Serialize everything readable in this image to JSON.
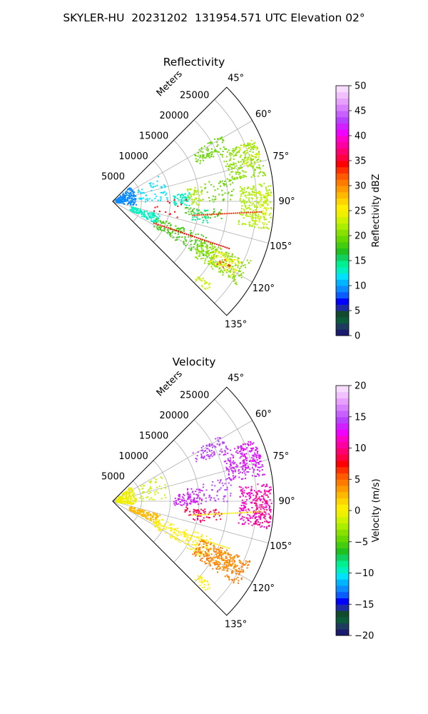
{
  "figure": {
    "title": "SKYLER-HU  20231202  131954.571 UTC Elevation 02°"
  },
  "chart_data": [
    {
      "type": "polar-sector",
      "title": "Reflectivity",
      "radial_label": "Meters",
      "radial_ticks": [
        "5000",
        "10000",
        "15000",
        "20000",
        "25000"
      ],
      "radial_tick_values": [
        5000,
        10000,
        15000,
        20000,
        25000
      ],
      "rmax": 28000,
      "azimuth_range_deg": [
        45,
        135
      ],
      "azimuth_ticks": [
        "45°",
        "60°",
        "75°",
        "90°",
        "105°",
        "120°",
        "135°"
      ],
      "azimuth_tick_values": [
        45,
        60,
        75,
        90,
        105,
        120,
        135
      ],
      "grid": true,
      "colorbar": {
        "label": "Reflectivity dBZ",
        "min": 0,
        "max": 50,
        "ticks": [
          "0",
          "5",
          "10",
          "15",
          "20",
          "25",
          "30",
          "35",
          "40",
          "45",
          "50"
        ],
        "tick_values": [
          0,
          5,
          10,
          15,
          20,
          25,
          30,
          35,
          40,
          45,
          50
        ],
        "colors": [
          "#1a1a6e",
          "#1f3a5f",
          "#0b5b3b",
          "#124a2e",
          "#1e2aa8",
          "#0000ff",
          "#0a5cff",
          "#0a8cff",
          "#00b4ff",
          "#00e1ff",
          "#00f0c0",
          "#00f090",
          "#10d060",
          "#20c020",
          "#44cc10",
          "#66d800",
          "#88e000",
          "#aaee00",
          "#ccf200",
          "#eef000",
          "#ffee00",
          "#ffd400",
          "#ffb800",
          "#ff9a00",
          "#ff7a00",
          "#ff5a00",
          "#ff3000",
          "#ff0000",
          "#ff0040",
          "#ff0070",
          "#ff00a0",
          "#ff00c8",
          "#f000ff",
          "#d020ff",
          "#b840ff",
          "#c860ff",
          "#d880ff",
          "#e8a0ff",
          "#f0c0ff",
          "#f8dcff"
        ]
      }
    },
    {
      "type": "polar-sector",
      "title": "Velocity",
      "radial_label": "Meters",
      "radial_ticks": [
        "5000",
        "10000",
        "15000",
        "20000",
        "25000"
      ],
      "radial_tick_values": [
        5000,
        10000,
        15000,
        20000,
        25000
      ],
      "rmax": 28000,
      "azimuth_range_deg": [
        45,
        135
      ],
      "azimuth_ticks": [
        "45°",
        "60°",
        "75°",
        "90°",
        "105°",
        "120°",
        "135°"
      ],
      "azimuth_tick_values": [
        45,
        60,
        75,
        90,
        105,
        120,
        135
      ],
      "grid": true,
      "colorbar": {
        "label": "Velocity (m/s)",
        "min": -20,
        "max": 20,
        "ticks": [
          "−20",
          "−15",
          "−10",
          "−5",
          "0",
          "5",
          "10",
          "15",
          "20"
        ],
        "tick_values": [
          -20,
          -15,
          -10,
          -5,
          0,
          5,
          10,
          15,
          20
        ],
        "colors": [
          "#1a1a6e",
          "#1f3a5f",
          "#0b5b3b",
          "#124a2e",
          "#1e2aa8",
          "#0000ff",
          "#0a5cff",
          "#0a8cff",
          "#00b4ff",
          "#00e1ff",
          "#00f0c0",
          "#00f090",
          "#10d060",
          "#20c020",
          "#44cc10",
          "#66d800",
          "#88e000",
          "#aaee00",
          "#ccf200",
          "#eef000",
          "#ffee00",
          "#ffd400",
          "#ffb800",
          "#ff9a00",
          "#ff7a00",
          "#ff5a00",
          "#ff3000",
          "#ff0000",
          "#ff0040",
          "#ff0070",
          "#ff00a0",
          "#ff00c8",
          "#f000ff",
          "#d020ff",
          "#b840ff",
          "#c860ff",
          "#d880ff",
          "#e8a0ff",
          "#f0c0ff",
          "#f8dcff"
        ]
      }
    }
  ],
  "echoes": {
    "reflectivity": [
      {
        "az_range": [
          58,
          66
        ],
        "r_range": [
          16000,
          22000
        ],
        "color": "#66d800",
        "density": 0.55
      },
      {
        "az_range": [
          66,
          80
        ],
        "r_range": [
          20500,
          26800
        ],
        "color": "#88e000",
        "density": 0.7
      },
      {
        "az_range": [
          66,
          76
        ],
        "r_range": [
          23500,
          26800
        ],
        "color": "#ccf200",
        "density": 0.45
      },
      {
        "az_range": [
          83,
          100
        ],
        "r_range": [
          22000,
          27500
        ],
        "color": "#aaee00",
        "density": 0.75
      },
      {
        "az_range": [
          86,
          99
        ],
        "r_range": [
          24500,
          27500
        ],
        "color": "#ddf400",
        "density": 0.4
      },
      {
        "az_range": [
          83,
          93
        ],
        "r_range": [
          10500,
          13500
        ],
        "color": "#00f0c0",
        "density": 0.6
      },
      {
        "az_range": [
          80,
          92
        ],
        "r_range": [
          13000,
          15500
        ],
        "color": "#aaee00",
        "density": 0.5
      },
      {
        "az_range": [
          78,
          90
        ],
        "r_range": [
          15500,
          21000
        ],
        "color": "#66d800",
        "density": 0.25
      },
      {
        "az_range": [
          94,
          100
        ],
        "r_range": [
          12500,
          19000
        ],
        "color": "#44cc10",
        "density": 0.35
      },
      {
        "az_range": [
          95,
          103
        ],
        "r_range": [
          14000,
          17000
        ],
        "color": "#00f090",
        "density": 0.4
      },
      {
        "az_range": [
          105,
          117
        ],
        "r_range": [
          3000,
          8500
        ],
        "color": "#00f0c0",
        "density": 0.6
      },
      {
        "az_range": [
          110,
          122
        ],
        "r_range": [
          8000,
          19000
        ],
        "color": "#44cc10",
        "density": 0.35
      },
      {
        "az_range": [
          113,
          124
        ],
        "r_range": [
          16500,
          26000
        ],
        "color": "#88e000",
        "density": 0.7
      },
      {
        "az_range": [
          114,
          122
        ],
        "r_range": [
          19500,
          24500
        ],
        "color": "#eef000",
        "density": 0.55
      },
      {
        "az_range": [
          116,
          121
        ],
        "r_range": [
          21000,
          23500
        ],
        "color": "#ff3000",
        "density": 0.25
      },
      {
        "az_range": [
          130,
          134
        ],
        "r_range": [
          19500,
          22500
        ],
        "color": "#ccf200",
        "density": 0.7
      },
      {
        "az_range": [
          48,
          100
        ],
        "r_range": [
          500,
          4000
        ],
        "color": "#0a8cff",
        "density": 0.35
      },
      {
        "az_range": [
          60,
          90
        ],
        "r_range": [
          4500,
          9500
        ],
        "color": "#00e1ff",
        "density": 0.12
      },
      {
        "az_range": [
          88,
          104
        ],
        "r_range": [
          7000,
          13000
        ],
        "color": "#ff0000",
        "density": 0.05
      }
    ],
    "velocity": [
      {
        "az_range": [
          58,
          66
        ],
        "r_range": [
          16000,
          22000
        ],
        "color": "#b840ff",
        "density": 0.55
      },
      {
        "az_range": [
          66,
          80
        ],
        "r_range": [
          20500,
          26800
        ],
        "color": "#d020ff",
        "density": 0.7
      },
      {
        "az_range": [
          66,
          76
        ],
        "r_range": [
          23500,
          26800
        ],
        "color": "#f000ff",
        "density": 0.45
      },
      {
        "az_range": [
          83,
          100
        ],
        "r_range": [
          22000,
          27500
        ],
        "color": "#ff00c8",
        "density": 0.75
      },
      {
        "az_range": [
          86,
          99
        ],
        "r_range": [
          24500,
          27500
        ],
        "color": "#ff0070",
        "density": 0.5
      },
      {
        "az_range": [
          83,
          93
        ],
        "r_range": [
          10500,
          13500
        ],
        "color": "#d020ff",
        "density": 0.6
      },
      {
        "az_range": [
          80,
          92
        ],
        "r_range": [
          13000,
          15500
        ],
        "color": "#d020ff",
        "density": 0.5
      },
      {
        "az_range": [
          78,
          90
        ],
        "r_range": [
          15500,
          21000
        ],
        "color": "#b840ff",
        "density": 0.25
      },
      {
        "az_range": [
          94,
          100
        ],
        "r_range": [
          12500,
          19000
        ],
        "color": "#ff0040",
        "density": 0.35
      },
      {
        "az_range": [
          95,
          103
        ],
        "r_range": [
          14000,
          17000
        ],
        "color": "#ff0070",
        "density": 0.4
      },
      {
        "az_range": [
          105,
          117
        ],
        "r_range": [
          3000,
          8500
        ],
        "color": "#ffb800",
        "density": 0.6
      },
      {
        "az_range": [
          110,
          122
        ],
        "r_range": [
          8000,
          19000
        ],
        "color": "#ffee00",
        "density": 0.35
      },
      {
        "az_range": [
          113,
          124
        ],
        "r_range": [
          16500,
          26000
        ],
        "color": "#ff7a00",
        "density": 0.7
      },
      {
        "az_range": [
          114,
          122
        ],
        "r_range": [
          19500,
          24500
        ],
        "color": "#ff9a00",
        "density": 0.55
      },
      {
        "az_range": [
          130,
          134
        ],
        "r_range": [
          19500,
          22500
        ],
        "color": "#ffee00",
        "density": 0.7
      },
      {
        "az_range": [
          48,
          100
        ],
        "r_range": [
          500,
          4000
        ],
        "color": "#eef000",
        "density": 0.35
      },
      {
        "az_range": [
          60,
          90
        ],
        "r_range": [
          4500,
          9500
        ],
        "color": "#ccf200",
        "density": 0.1
      }
    ]
  }
}
